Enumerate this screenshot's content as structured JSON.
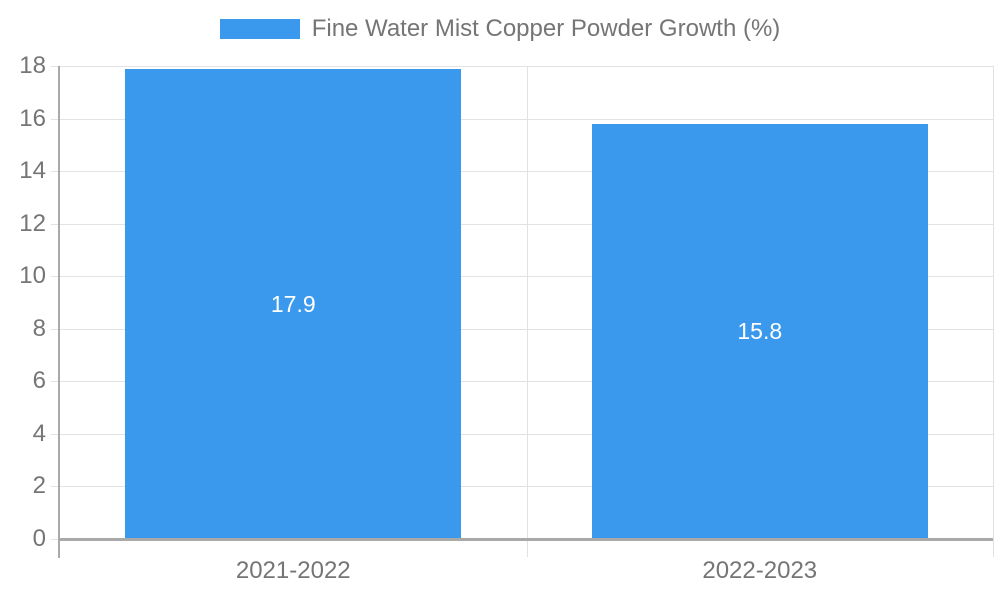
{
  "chart_data": {
    "type": "bar",
    "title": "",
    "legend": "Fine Water Mist Copper Powder Growth (%)",
    "legend_position": "top-center",
    "categories": [
      "2021-2022",
      "2022-2023"
    ],
    "series": [
      {
        "name": "Fine Water Mist Copper Powder Growth (%)",
        "values": [
          17.9,
          15.8
        ]
      }
    ],
    "data_labels": [
      "17.9",
      "15.8"
    ],
    "xlabel": "",
    "ylabel": "",
    "ylim": [
      0,
      18
    ],
    "yticks": [
      0,
      2,
      4,
      6,
      8,
      10,
      12,
      14,
      16,
      18
    ],
    "grid": true,
    "colors": {
      "bar": "#3B99ED",
      "grid": "#E2E2E2",
      "axis": "#A9A9A9",
      "tick_text": "#757575",
      "data_label_text": "#FFFFFF",
      "background": "#FFFFFF"
    }
  }
}
